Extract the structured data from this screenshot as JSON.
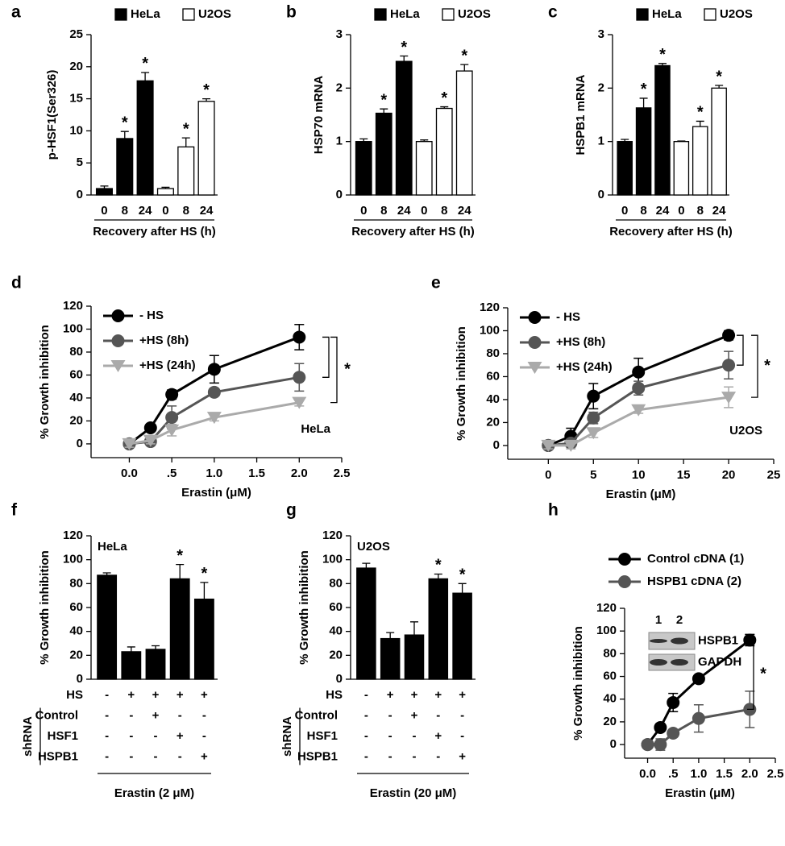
{
  "chart_data": [
    {
      "type": "bar",
      "panel": "a",
      "ylabel": "p-HSF1(Ser326)",
      "xlabel": "Recovery after HS (h)",
      "categories": [
        "0",
        "8",
        "24",
        "0",
        "8",
        "24"
      ],
      "ylim": [
        0,
        25
      ],
      "yticks": [
        0,
        5,
        10,
        15,
        20,
        25
      ],
      "legend": "top",
      "series": [
        {
          "name": "HeLa",
          "color": "#000000",
          "values": [
            1.0,
            8.8,
            17.8,
            null,
            null,
            null
          ],
          "errors": [
            0.4,
            1.1,
            1.3,
            null,
            null,
            null
          ],
          "markers": [
            null,
            "*",
            "*",
            null,
            null,
            null
          ]
        },
        {
          "name": "U2OS",
          "color": "#ffffff",
          "values": [
            null,
            null,
            null,
            1.0,
            7.5,
            14.6
          ],
          "errors": [
            null,
            null,
            null,
            0.2,
            1.4,
            0.4
          ],
          "markers": [
            null,
            null,
            null,
            null,
            "*",
            "*"
          ]
        }
      ]
    },
    {
      "type": "bar",
      "panel": "b",
      "ylabel": "HSP70 mRNA",
      "xlabel": "Recovery after HS (h)",
      "categories": [
        "0",
        "8",
        "24",
        "0",
        "8",
        "24"
      ],
      "ylim": [
        0,
        3
      ],
      "yticks": [
        0,
        1,
        2,
        3
      ],
      "legend": "top",
      "series": [
        {
          "name": "HeLa",
          "color": "#000000",
          "values": [
            1.0,
            1.53,
            2.5,
            null,
            null,
            null
          ],
          "errors": [
            0.05,
            0.08,
            0.1,
            null,
            null,
            null
          ],
          "markers": [
            null,
            "*",
            "*",
            null,
            null,
            null
          ]
        },
        {
          "name": "U2OS",
          "color": "#ffffff",
          "values": [
            null,
            null,
            null,
            1.0,
            1.62,
            2.32
          ],
          "errors": [
            null,
            null,
            null,
            0.03,
            0.03,
            0.12
          ],
          "markers": [
            null,
            null,
            null,
            null,
            "*",
            "*"
          ]
        }
      ]
    },
    {
      "type": "bar",
      "panel": "c",
      "ylabel": "HSPB1 mRNA",
      "xlabel": "Recovery after HS (h)",
      "categories": [
        "0",
        "8",
        "24",
        "0",
        "8",
        "24"
      ],
      "ylim": [
        0,
        3
      ],
      "yticks": [
        0,
        1,
        2,
        3
      ],
      "legend": "top",
      "series": [
        {
          "name": "HeLa",
          "color": "#000000",
          "values": [
            1.0,
            1.63,
            2.42,
            null,
            null,
            null
          ],
          "errors": [
            0.04,
            0.18,
            0.04,
            null,
            null,
            null
          ],
          "markers": [
            null,
            "*",
            "*",
            null,
            null,
            null
          ]
        },
        {
          "name": "U2OS",
          "color": "#ffffff",
          "values": [
            null,
            null,
            null,
            1.0,
            1.28,
            2.0
          ],
          "errors": [
            null,
            null,
            null,
            0.01,
            0.1,
            0.05
          ],
          "markers": [
            null,
            null,
            null,
            null,
            "*",
            "*"
          ]
        }
      ]
    },
    {
      "type": "line",
      "panel": "d",
      "ylabel": "% Growth inhibition",
      "xlabel": "Erastin (μM)",
      "label": "HeLa",
      "annotation": "*",
      "legend": "upper left",
      "x": [
        0,
        0.25,
        0.5,
        1,
        2
      ],
      "xlim": [
        -0.45,
        2.5
      ],
      "xticks": [
        {
          "value": 0,
          "label": "0.0"
        },
        {
          "value": 0.5,
          "label": ".5"
        },
        {
          "value": 1,
          "label": "1.0"
        },
        {
          "value": 1.5,
          "label": "1.5"
        },
        {
          "value": 2,
          "label": "2.0"
        },
        {
          "value": 2.5,
          "label": "2.5"
        }
      ],
      "ylim": [
        -12,
        120
      ],
      "yticks": [
        0,
        20,
        40,
        60,
        80,
        100,
        120
      ],
      "series": [
        {
          "name": "- HS",
          "color": "#000000",
          "marker": "circle",
          "values": [
            0,
            14,
            43,
            65,
            93
          ],
          "errors": [
            3,
            3,
            4,
            12,
            11
          ]
        },
        {
          "name": "+HS (8h)",
          "color": "#555555",
          "marker": "circle",
          "values": [
            0,
            2,
            23,
            45,
            58
          ],
          "errors": [
            3,
            2,
            10,
            3,
            12
          ]
        },
        {
          "name": "+HS (24h)",
          "color": "#aaaaaa",
          "marker": "triangle",
          "values": [
            0,
            3,
            12,
            23,
            36
          ],
          "errors": [
            3,
            3,
            5,
            3,
            3
          ]
        }
      ]
    },
    {
      "type": "line",
      "panel": "e",
      "ylabel": "% Growth inhibition",
      "xlabel": "Erastin (μM)",
      "label": "U2OS",
      "annotation": "*",
      "legend": "upper left",
      "x": [
        0,
        2.5,
        5,
        10,
        20
      ],
      "xlim": [
        -4.5,
        25
      ],
      "xticks": [
        0,
        5,
        10,
        15,
        20,
        25
      ],
      "ylim": [
        -12,
        120
      ],
      "yticks": [
        0,
        20,
        40,
        60,
        80,
        100,
        120
      ],
      "series": [
        {
          "name": "- HS",
          "color": "#000000",
          "marker": "circle",
          "values": [
            0,
            8,
            43,
            64,
            96
          ],
          "errors": [
            3,
            7,
            11,
            12,
            4
          ]
        },
        {
          "name": "+HS (8h)",
          "color": "#555555",
          "marker": "circle",
          "values": [
            0,
            2,
            24,
            50,
            70
          ],
          "errors": [
            3,
            3,
            5,
            6,
            12
          ]
        },
        {
          "name": "+HS (24h)",
          "color": "#aaaaaa",
          "marker": "triangle",
          "values": [
            0,
            0,
            11,
            31,
            42
          ],
          "errors": [
            3,
            3,
            4,
            3,
            9
          ]
        }
      ]
    },
    {
      "type": "bar",
      "panel": "f",
      "ylabel": "% Growth inhibition",
      "label": "HeLa",
      "xlabel": "Erastin (2 μM)",
      "color": "#000000",
      "values": [
        87,
        23,
        25,
        84,
        67
      ],
      "errors": [
        2,
        4,
        3,
        12,
        14
      ],
      "markers": [
        null,
        null,
        null,
        "*",
        "*"
      ],
      "ylim": [
        0,
        120
      ],
      "yticks": [
        0,
        20,
        40,
        60,
        80,
        100,
        120
      ],
      "condition_group": "shRNA",
      "conditions": [
        {
          "name": "HS",
          "values": [
            "-",
            "+",
            "+",
            "+",
            "+"
          ]
        },
        {
          "name": "Control",
          "values": [
            "-",
            "-",
            "+",
            "-",
            "-"
          ]
        },
        {
          "name": "HSF1",
          "values": [
            "-",
            "-",
            "-",
            "+",
            "-"
          ]
        },
        {
          "name": "HSPB1",
          "values": [
            "-",
            "-",
            "-",
            "-",
            "+"
          ]
        }
      ]
    },
    {
      "type": "bar",
      "panel": "g",
      "ylabel": "% Growth inhibition",
      "label": "U2OS",
      "xlabel": "Erastin (20 μM)",
      "color": "#000000",
      "values": [
        93,
        34,
        37,
        84,
        72
      ],
      "errors": [
        4,
        5,
        11,
        4,
        8
      ],
      "markers": [
        null,
        null,
        null,
        "*",
        "*"
      ],
      "ylim": [
        0,
        120
      ],
      "yticks": [
        0,
        20,
        40,
        60,
        80,
        100,
        120
      ],
      "condition_group": "shRNA",
      "conditions": [
        {
          "name": "HS",
          "values": [
            "-",
            "+",
            "+",
            "+",
            "+"
          ]
        },
        {
          "name": "Control",
          "values": [
            "-",
            "-",
            "+",
            "-",
            "-"
          ]
        },
        {
          "name": "HSF1",
          "values": [
            "-",
            "-",
            "-",
            "+",
            "-"
          ]
        },
        {
          "name": "HSPB1",
          "values": [
            "-",
            "-",
            "-",
            "-",
            "+"
          ]
        }
      ]
    },
    {
      "type": "line",
      "panel": "h",
      "ylabel": "% Growth inhibition",
      "xlabel": "Erastin (μM)",
      "annotation": "*",
      "legend": "top",
      "x": [
        0,
        0.25,
        0.5,
        1,
        2
      ],
      "xlim": [
        -0.45,
        2.5
      ],
      "xticks": [
        {
          "value": 0,
          "label": "0.0"
        },
        {
          "value": 0.5,
          "label": ".5"
        },
        {
          "value": 1,
          "label": "1.0"
        },
        {
          "value": 1.5,
          "label": "1.5"
        },
        {
          "value": 2,
          "label": "2.0"
        },
        {
          "value": 2.5,
          "label": "2.5"
        }
      ],
      "ylim": [
        -12,
        120
      ],
      "yticks": [
        0,
        20,
        40,
        60,
        80,
        100,
        120
      ],
      "inset": {
        "lanes": [
          "1",
          "2"
        ],
        "bands": [
          "HSPB1",
          "GAPDH"
        ]
      },
      "series": [
        {
          "name": "Control cDNA (1)",
          "color": "#000000",
          "marker": "circle",
          "values": [
            0,
            15,
            37,
            58,
            92
          ],
          "errors": [
            3,
            3,
            8,
            3,
            5
          ]
        },
        {
          "name": "HSPB1 cDNA (2)",
          "color": "#555555",
          "marker": "circle",
          "values": [
            0,
            0,
            10,
            23,
            31
          ],
          "errors": [
            3,
            5,
            3,
            12,
            16
          ]
        }
      ]
    }
  ]
}
